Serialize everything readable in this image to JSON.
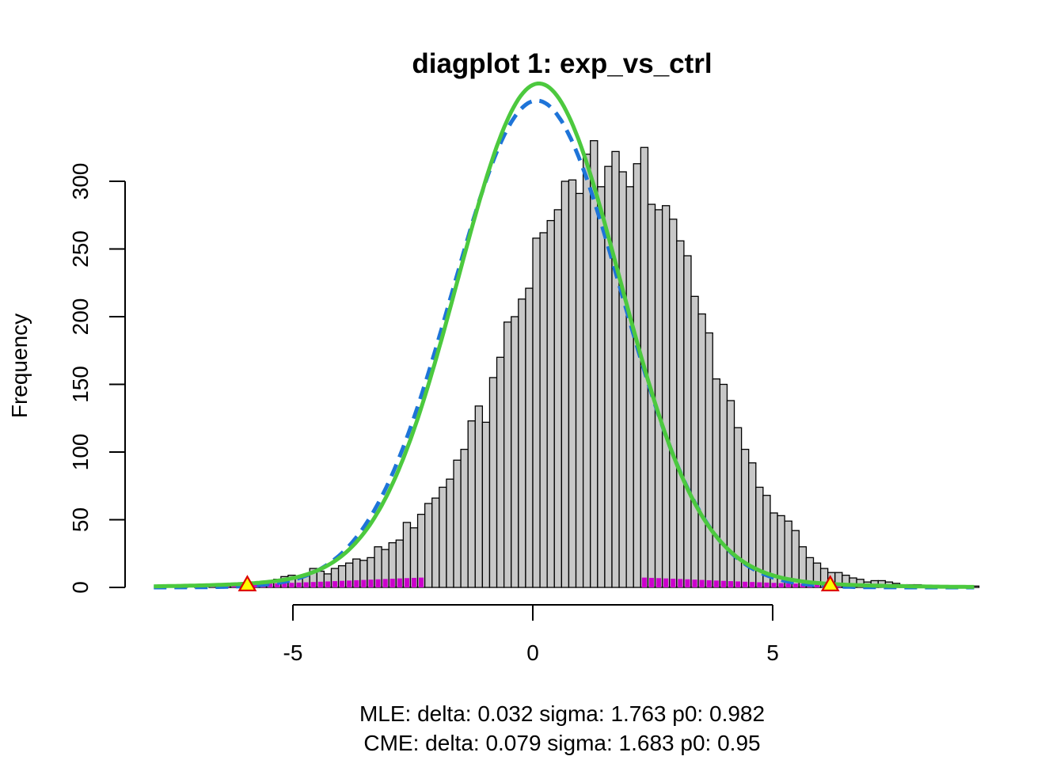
{
  "chart_data": {
    "type": "bar",
    "title": "diagplot 1: exp_vs_ctrl",
    "xlabel": "",
    "ylabel": "Frequency",
    "xlim": [
      -7.9,
      9.2
    ],
    "ylim": [
      0,
      330
    ],
    "x_ticks": [
      -5,
      0,
      5
    ],
    "x_tick_labels": [
      "-5",
      "0",
      "5"
    ],
    "y_ticks": [
      0,
      50,
      100,
      150,
      200,
      250,
      300
    ],
    "y_tick_labels": [
      "0",
      "50",
      "100",
      "150",
      "200",
      "250",
      "300"
    ],
    "grid": false,
    "bin_width": 0.15,
    "bin_start": -7.8,
    "histogram_counts": [
      1,
      0,
      0,
      1,
      0,
      1,
      0,
      2,
      1,
      1,
      2,
      2,
      3,
      3,
      4,
      4,
      6,
      8,
      9,
      7,
      9,
      14,
      12,
      10,
      14,
      16,
      18,
      21,
      20,
      22,
      30,
      28,
      33,
      35,
      48,
      44,
      54,
      62,
      66,
      74,
      80,
      94,
      102,
      123,
      134,
      122,
      155,
      170,
      196,
      200,
      213,
      221,
      258,
      262,
      271,
      279,
      300,
      301,
      291,
      320,
      330,
      296,
      311,
      322,
      307,
      296,
      313,
      325,
      283,
      279,
      282,
      272,
      256,
      245,
      215,
      202,
      188,
      154,
      150,
      138,
      118,
      102,
      92,
      74,
      68,
      55,
      53,
      49,
      42,
      30,
      22,
      18,
      14,
      11,
      11,
      9,
      7,
      6,
      4,
      5,
      5,
      4,
      3,
      2,
      2,
      2,
      1,
      1,
      1,
      1,
      1,
      0,
      1,
      1
    ],
    "series": [
      {
        "name": "",
        "color": "#1E74D8",
        "style": "dashed",
        "kind": "normal-fit",
        "delta": 0.032,
        "sigma": 1.763,
        "p0": 0.982
      },
      {
        "name": "",
        "color": "#4CC93E",
        "style": "solid",
        "kind": "mixture-fit",
        "delta": 0.079,
        "sigma": 1.683,
        "p0": 0.95
      }
    ],
    "alt_counts_color": "#CC00CC",
    "markers": [
      {
        "x": -5.95,
        "y": 1,
        "shape": "triangle",
        "fill": "#FFFF00",
        "stroke": "#DD0000"
      },
      {
        "x": 6.2,
        "y": 1,
        "shape": "triangle",
        "fill": "#FFFF00",
        "stroke": "#DD0000"
      }
    ],
    "annotations": [
      "MLE: delta: 0.032 sigma: 1.763 p0: 0.982",
      "CME: delta: 0.079 sigma: 1.683 p0: 0.95"
    ],
    "bar_fill": "#C8C8C8",
    "bar_stroke": "#000000"
  }
}
